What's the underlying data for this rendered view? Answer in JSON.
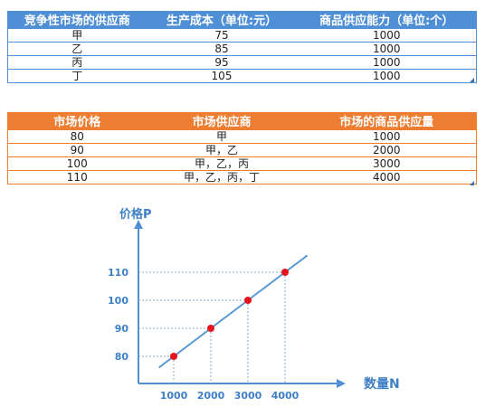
{
  "table1": {
    "headers": [
      "竞争性市场的供应商",
      "生产成本（单位:元）",
      "商品供应能力（单位:个）"
    ],
    "rows": [
      [
        "甲",
        "75",
        "1000"
      ],
      [
        "乙",
        "85",
        "1000"
      ],
      [
        "丙",
        "95",
        "1000"
      ],
      [
        "丁",
        "105",
        "1000"
      ]
    ]
  },
  "table2": {
    "headers": [
      "市场价格",
      "市场供应商",
      "市场的商品供应量"
    ],
    "rows": [
      [
        "80",
        "甲",
        "1000"
      ],
      [
        "90",
        "甲，乙",
        "2000"
      ],
      [
        "100",
        "甲，乙，丙",
        "3000"
      ],
      [
        "110",
        "甲，乙，丙，丁",
        "4000"
      ]
    ]
  },
  "colors": {
    "table1_header": "#4f8fd6",
    "table2_header": "#ed7d31",
    "axis": "#4f8fd6",
    "line": "#5b9bd5",
    "point": "#e8141b"
  },
  "chart_data": {
    "type": "line",
    "title": "",
    "xlabel": "数量N",
    "ylabel": "价格P",
    "x_ticks": [
      "1000",
      "2000",
      "3000",
      "4000"
    ],
    "y_ticks": [
      "80",
      "90",
      "100",
      "110"
    ],
    "xlim": [
      0,
      4600
    ],
    "ylim": [
      65,
      130
    ],
    "series": [
      {
        "x": [
          1000,
          2000,
          3000,
          4000
        ],
        "y": [
          80,
          90,
          100,
          110
        ]
      }
    ],
    "guide_lines": "dotted",
    "grid": false,
    "legend": "none"
  }
}
